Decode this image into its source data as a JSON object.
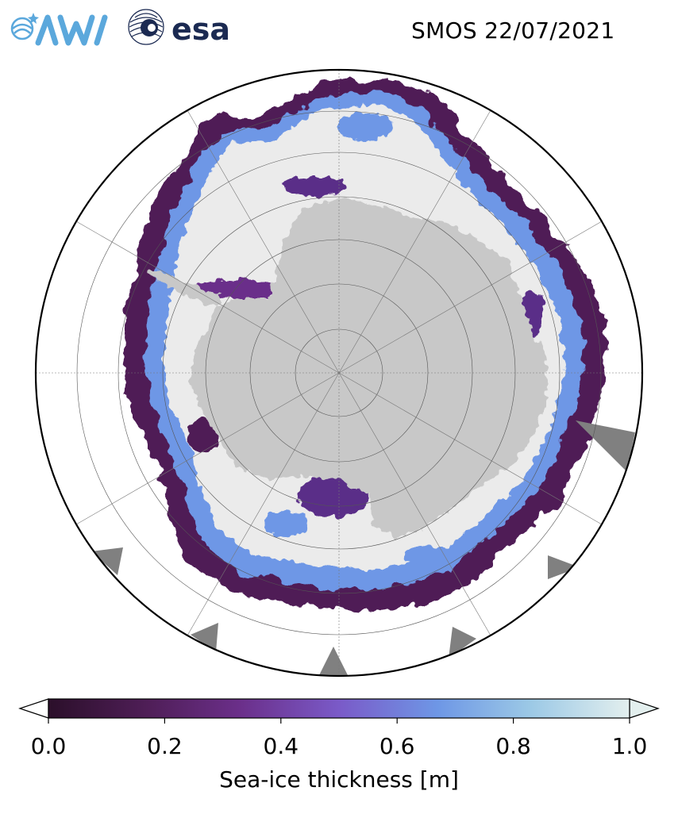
{
  "header": {
    "logo_left_text": "AWI",
    "logo_right_text": "esa",
    "title": "SMOS 22/07/2021"
  },
  "map": {
    "projection": "south-polar-stereographic",
    "land_color": "#c8c8c8",
    "thick_ice_color": "#ebebeb",
    "ocean_color": "#ffffff",
    "missing_data_color": "#808080"
  },
  "colorbar": {
    "label": "Sea-ice thickness [m]",
    "min": 0.0,
    "max": 1.0,
    "ticks": [
      "0.0",
      "0.2",
      "0.4",
      "0.6",
      "0.8",
      "1.0"
    ],
    "colormap": [
      "#2b0f2a",
      "#4f1e57",
      "#6b2f8a",
      "#7a5ac8",
      "#6e97e6",
      "#9cc9e6",
      "#e3efee"
    ],
    "extend": "both"
  }
}
